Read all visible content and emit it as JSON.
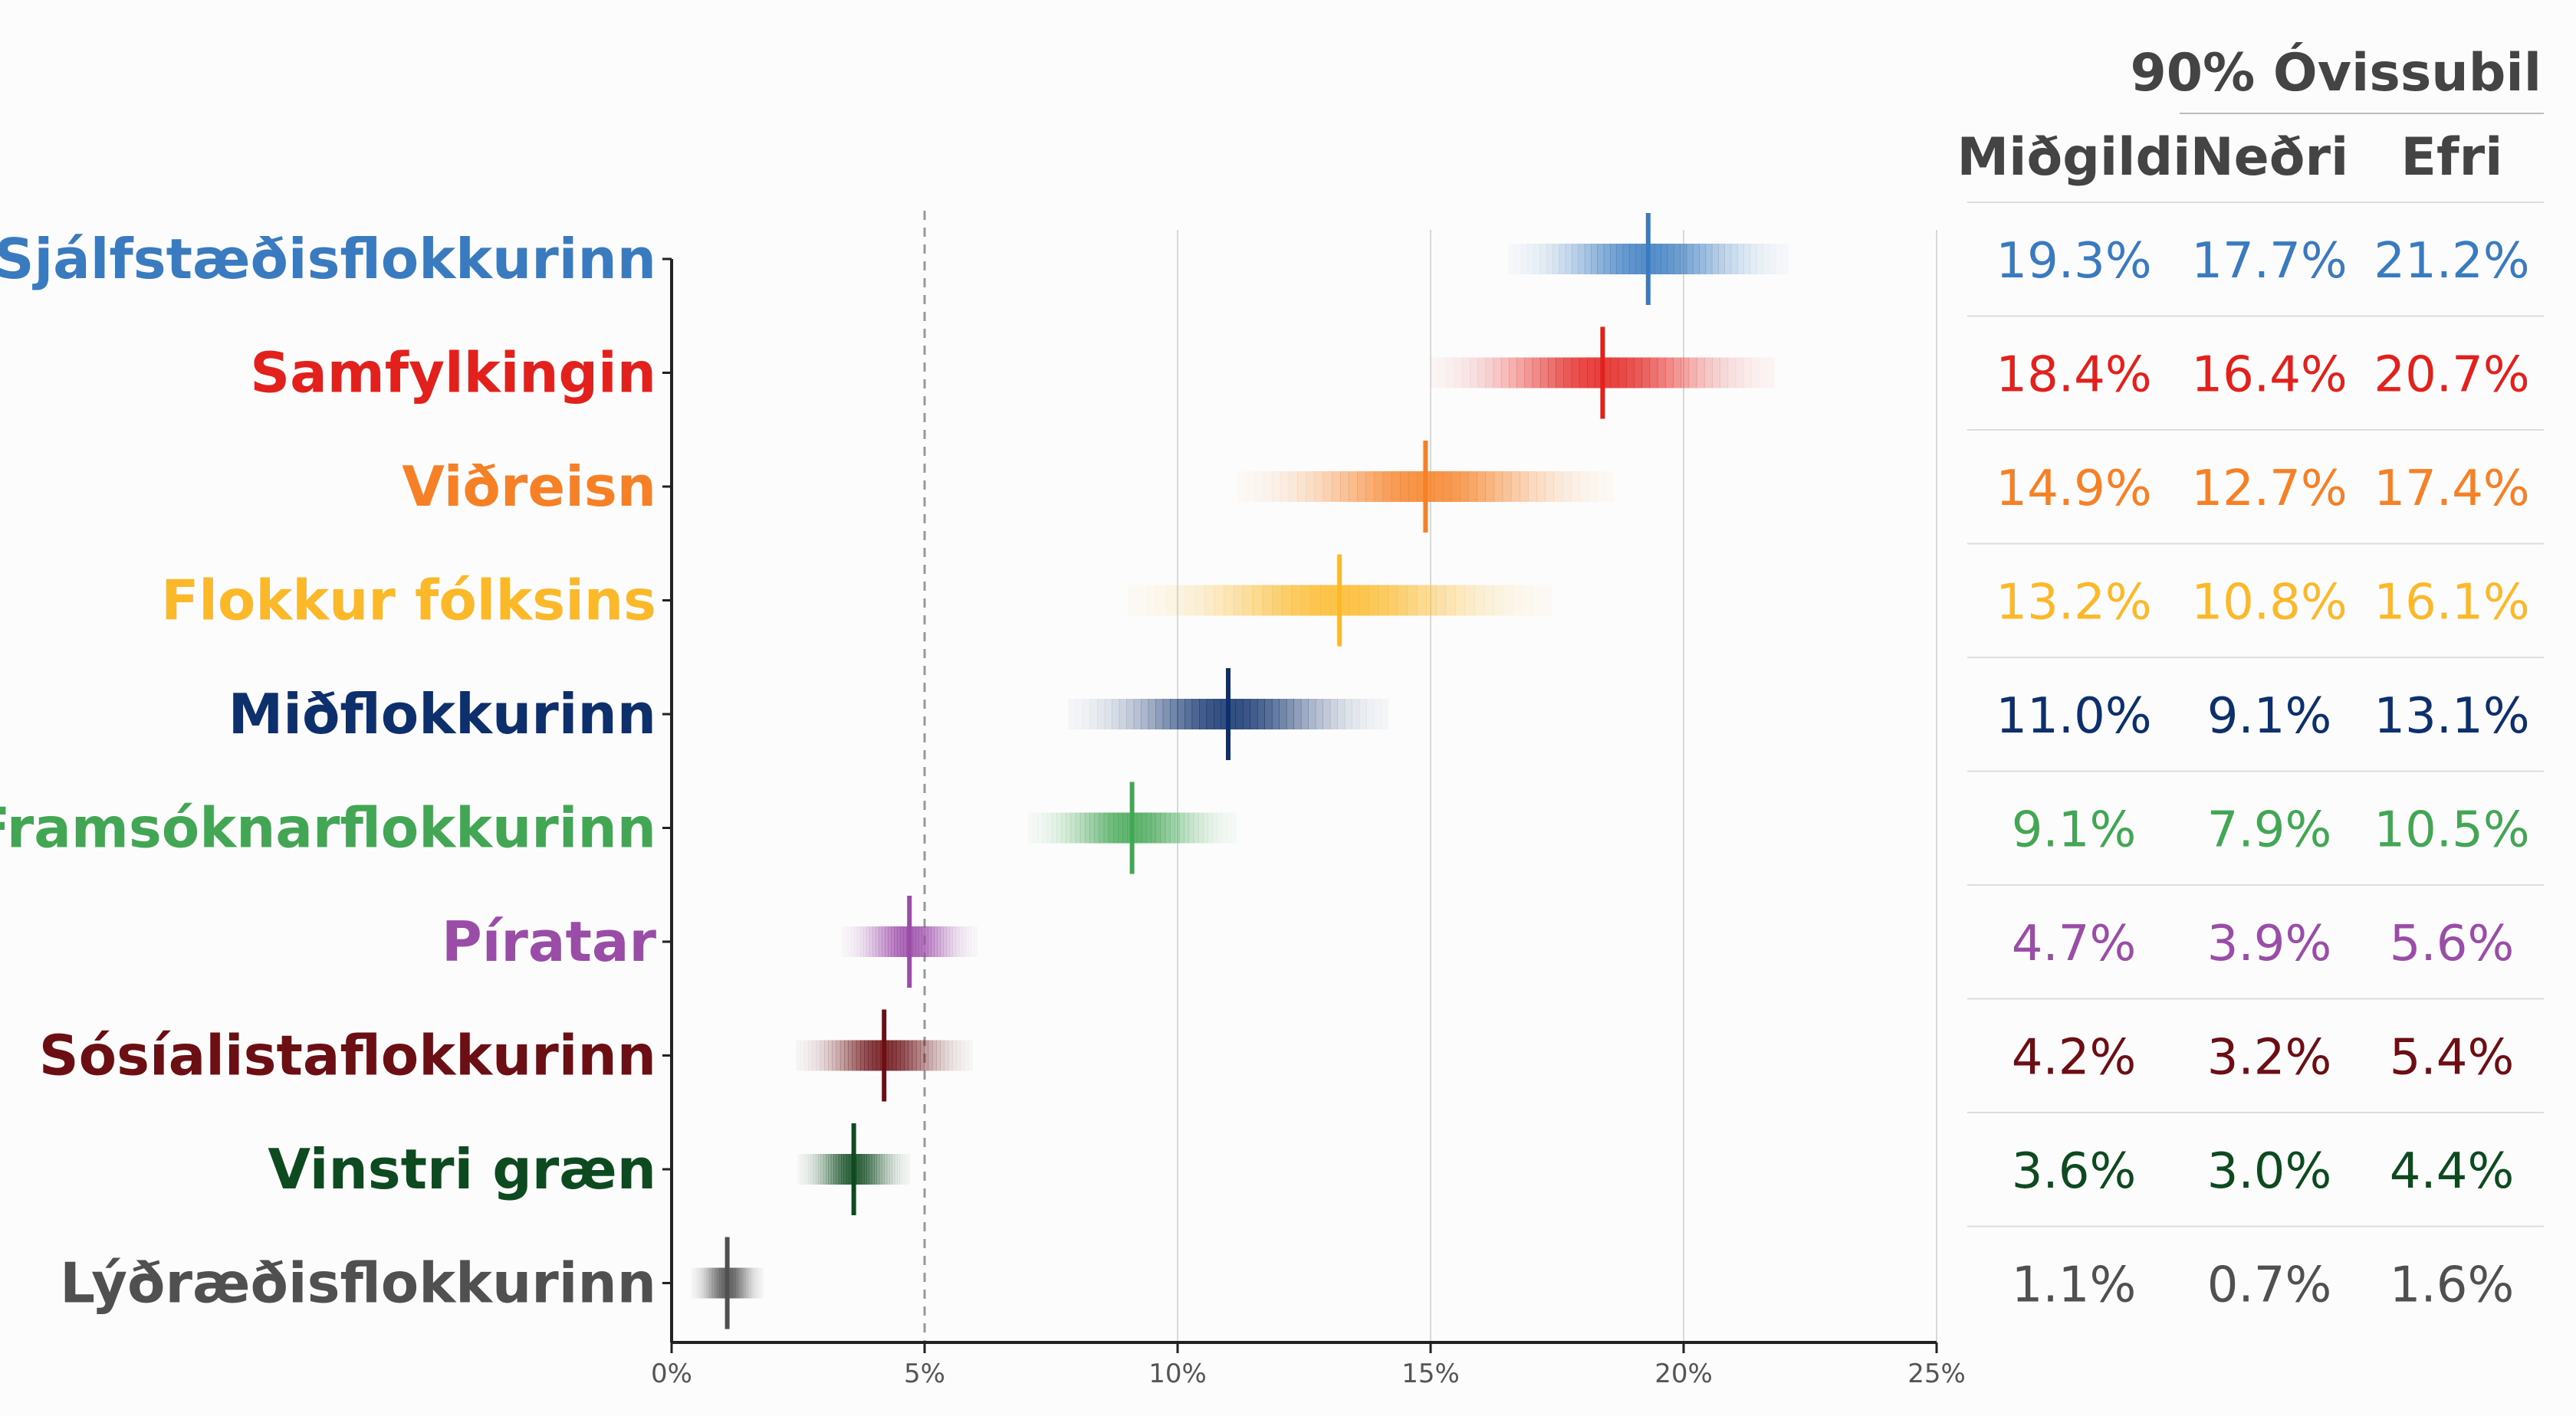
{
  "chart_data": {
    "type": "interval",
    "x_axis": {
      "range": [
        0,
        25
      ],
      "ticks": [
        0,
        5,
        10,
        15,
        20,
        25
      ],
      "tick_labels": [
        "0%",
        "5%",
        "10%",
        "15%",
        "20%",
        "25%"
      ],
      "reference_line": 5
    },
    "table": {
      "group_header": "90% Óvissubil",
      "col_median": "Miðgildi",
      "col_lower": "Neðri",
      "col_upper": "Efri"
    },
    "series": [
      {
        "name": "Sjálfstæðisflokkurinn",
        "color": "#3a7bbf",
        "median": 19.3,
        "lower": 17.7,
        "upper": 21.2,
        "median_label": "19.3%",
        "lower_label": "17.7%",
        "upper_label": "21.2%"
      },
      {
        "name": "Samfylkingin",
        "color": "#e2201c",
        "median": 18.4,
        "lower": 16.4,
        "upper": 20.7,
        "median_label": "18.4%",
        "lower_label": "16.4%",
        "upper_label": "20.7%"
      },
      {
        "name": "Viðreisn",
        "color": "#f58025",
        "median": 14.9,
        "lower": 12.7,
        "upper": 17.4,
        "median_label": "14.9%",
        "lower_label": "12.7%",
        "upper_label": "17.4%"
      },
      {
        "name": "Flokkur fólksins",
        "color": "#fbb829",
        "median": 13.2,
        "lower": 10.8,
        "upper": 16.1,
        "median_label": "13.2%",
        "lower_label": "10.8%",
        "upper_label": "16.1%"
      },
      {
        "name": "Miðflokkurinn",
        "color": "#0d2f6b",
        "median": 11.0,
        "lower": 9.1,
        "upper": 13.1,
        "median_label": "11.0%",
        "lower_label": "9.1%",
        "upper_label": "13.1%"
      },
      {
        "name": "Framsóknarflokkurinn",
        "color": "#43a654",
        "median": 9.1,
        "lower": 7.9,
        "upper": 10.5,
        "median_label": "9.1%",
        "lower_label": "7.9%",
        "upper_label": "10.5%"
      },
      {
        "name": "Píratar",
        "color": "#9a4da6",
        "median": 4.7,
        "lower": 3.9,
        "upper": 5.6,
        "median_label": "4.7%",
        "lower_label": "3.9%",
        "upper_label": "5.6%"
      },
      {
        "name": "Sósíalistaflokkurinn",
        "color": "#6b0f14",
        "median": 4.2,
        "lower": 3.2,
        "upper": 5.4,
        "median_label": "4.2%",
        "lower_label": "3.2%",
        "upper_label": "5.4%"
      },
      {
        "name": "Vinstri græn",
        "color": "#0e4a1f",
        "median": 3.6,
        "lower": 3.0,
        "upper": 4.4,
        "median_label": "3.6%",
        "lower_label": "3.0%",
        "upper_label": "4.4%"
      },
      {
        "name": "Lýðræðisflokkurinn",
        "color": "#505050",
        "median": 1.1,
        "lower": 0.7,
        "upper": 1.6,
        "median_label": "1.1%",
        "lower_label": "0.7%",
        "upper_label": "1.6%"
      }
    ]
  }
}
